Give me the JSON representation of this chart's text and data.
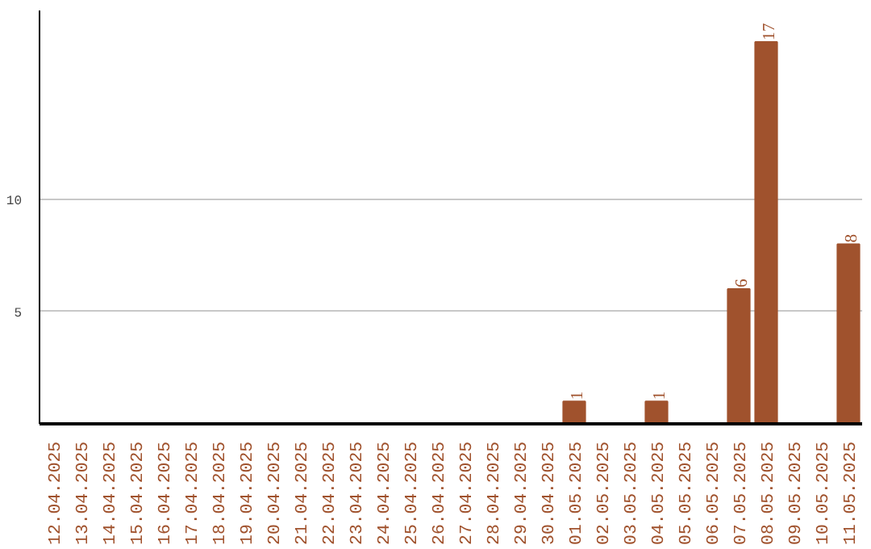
{
  "chart_data": {
    "type": "bar",
    "categories": [
      "12.04.2025",
      "13.04.2025",
      "14.04.2025",
      "15.04.2025",
      "16.04.2025",
      "17.04.2025",
      "18.04.2025",
      "19.04.2025",
      "20.04.2025",
      "21.04.2025",
      "22.04.2025",
      "23.04.2025",
      "24.04.2025",
      "25.04.2025",
      "26.04.2025",
      "27.04.2025",
      "28.04.2025",
      "29.04.2025",
      "30.04.2025",
      "01.05.2025",
      "02.05.2025",
      "03.05.2025",
      "04.05.2025",
      "05.05.2025",
      "06.05.2025",
      "07.05.2025",
      "08.05.2025",
      "09.05.2025",
      "10.05.2025",
      "11.05.2025"
    ],
    "values": [
      0,
      0,
      0,
      0,
      0,
      0,
      0,
      0,
      0,
      0,
      0,
      0,
      0,
      0,
      0,
      0,
      0,
      0,
      0,
      1,
      0,
      0,
      1,
      0,
      0,
      6,
      17,
      0,
      0,
      8
    ],
    "value_labels": [
      null,
      null,
      null,
      null,
      null,
      null,
      null,
      null,
      null,
      null,
      null,
      null,
      null,
      null,
      null,
      null,
      null,
      null,
      null,
      "1",
      null,
      null,
      "1",
      null,
      null,
      "6",
      "17",
      null,
      null,
      "8"
    ],
    "color": "#a0522d",
    "ylim": [
      0,
      18.4
    ],
    "yticks": [
      5,
      10
    ],
    "grid": "y"
  }
}
